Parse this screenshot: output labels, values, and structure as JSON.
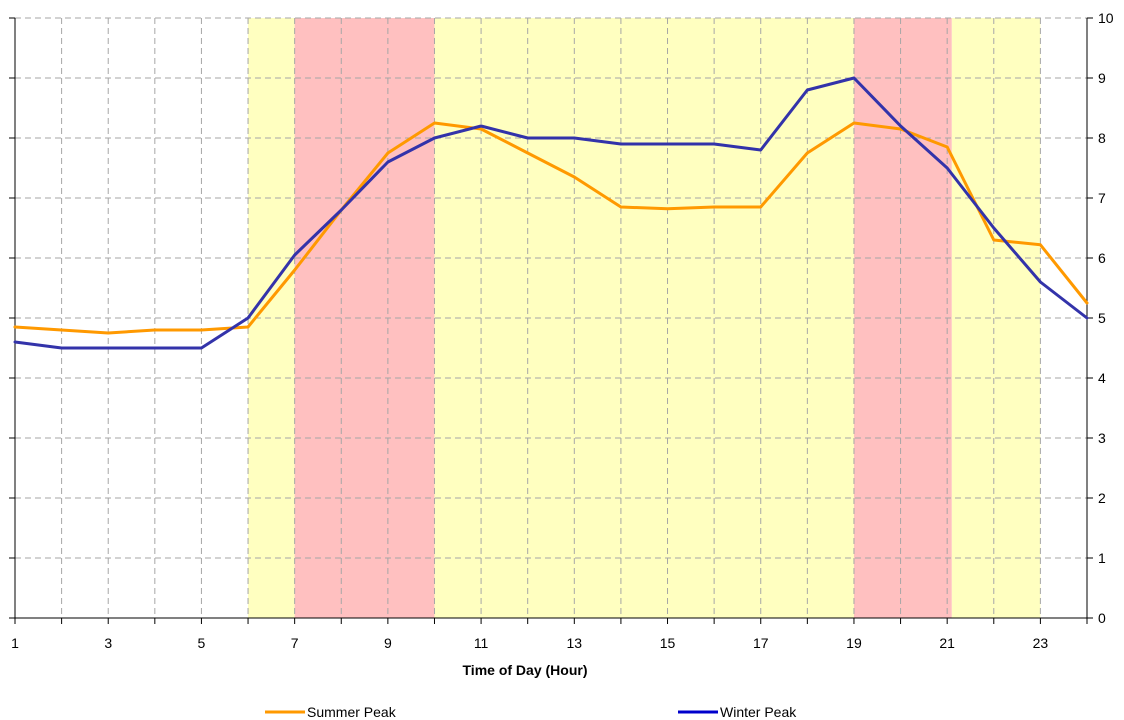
{
  "chart_data": {
    "type": "line",
    "title": "",
    "xlabel": "Time of Day (Hour)",
    "ylabel": "",
    "x": [
      1,
      2,
      3,
      4,
      5,
      6,
      7,
      8,
      9,
      10,
      11,
      12,
      13,
      14,
      15,
      16,
      17,
      18,
      19,
      20,
      21,
      22,
      23,
      24
    ],
    "xlim": [
      1,
      24
    ],
    "ylim": [
      0,
      10
    ],
    "x_tick_labels": [
      "1",
      "3",
      "5",
      "7",
      "9",
      "11",
      "13",
      "15",
      "17",
      "19",
      "21",
      "23"
    ],
    "y_tick_labels": [
      "0",
      "1",
      "2",
      "3",
      "4",
      "5",
      "6",
      "7",
      "8",
      "9",
      "10"
    ],
    "grid": true,
    "legend_position": "bottom",
    "series": [
      {
        "name": "Summer Peak",
        "color": "#ff9900",
        "values": [
          4.85,
          4.8,
          4.75,
          4.8,
          4.8,
          4.85,
          5.8,
          6.8,
          7.75,
          8.25,
          8.15,
          7.75,
          7.35,
          6.85,
          6.82,
          6.85,
          6.85,
          7.75,
          8.25,
          8.15,
          7.85,
          6.3,
          6.22,
          5.25
        ]
      },
      {
        "name": "Winter Peak",
        "color": "#3333aa",
        "values": [
          4.6,
          4.5,
          4.5,
          4.5,
          4.5,
          5.0,
          6.05,
          6.8,
          7.6,
          8.0,
          8.2,
          8.0,
          8.0,
          7.9,
          7.9,
          7.9,
          7.8,
          8.8,
          9.0,
          8.2,
          7.5,
          6.5,
          5.6,
          5.0
        ]
      }
    ],
    "legend_line_colors": {
      "Summer Peak": "#ff9900",
      "Winter Peak": "#0000cc"
    },
    "bands": [
      {
        "from": 6,
        "to": 7,
        "color": "#ffffc0"
      },
      {
        "from": 7,
        "to": 10,
        "color": "#ffc0c0"
      },
      {
        "from": 10,
        "to": 19,
        "color": "#ffffc0"
      },
      {
        "from": 19,
        "to": 21.1,
        "color": "#ffc0c0"
      },
      {
        "from": 21.1,
        "to": 23,
        "color": "#ffffc0"
      }
    ]
  }
}
